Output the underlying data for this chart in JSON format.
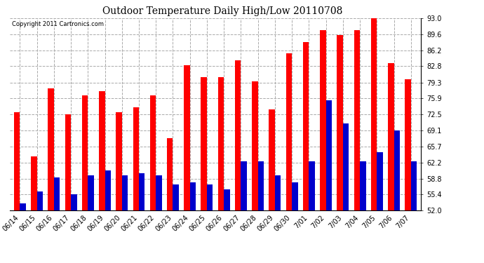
{
  "title": "Outdoor Temperature Daily High/Low 20110708",
  "copyright": "Copyright 2011 Cartronics.com",
  "dates": [
    "06/14",
    "06/15",
    "06/16",
    "06/17",
    "06/18",
    "06/19",
    "06/20",
    "06/21",
    "06/22",
    "06/23",
    "06/24",
    "06/25",
    "06/26",
    "06/27",
    "06/28",
    "06/29",
    "06/30",
    "7/01",
    "7/02",
    "7/03",
    "7/04",
    "7/05",
    "7/06",
    "7/07"
  ],
  "highs": [
    73.0,
    63.5,
    78.0,
    72.5,
    76.5,
    77.5,
    73.0,
    74.0,
    76.5,
    67.5,
    83.0,
    80.5,
    80.5,
    84.0,
    79.5,
    73.5,
    85.5,
    88.0,
    90.5,
    89.5,
    90.5,
    93.0,
    83.5,
    80.0
  ],
  "lows": [
    53.5,
    56.0,
    59.0,
    55.5,
    59.5,
    60.5,
    59.5,
    60.0,
    59.5,
    57.5,
    58.0,
    57.5,
    56.5,
    62.5,
    62.5,
    59.5,
    58.0,
    62.5,
    75.5,
    70.5,
    62.5,
    64.5,
    69.0,
    62.5
  ],
  "high_color": "#ff0000",
  "low_color": "#0000cc",
  "bg_color": "#ffffff",
  "grid_color": "#aaaaaa",
  "ymin": 52.0,
  "ymax": 93.0,
  "ytick_labels": [
    "52.0",
    "55.4",
    "58.8",
    "62.2",
    "65.7",
    "69.1",
    "72.5",
    "75.9",
    "79.3",
    "82.8",
    "86.2",
    "89.6",
    "93.0"
  ],
  "ytick_values": [
    52.0,
    55.4,
    58.8,
    62.2,
    65.7,
    69.1,
    72.5,
    75.9,
    79.3,
    82.8,
    86.2,
    89.6,
    93.0
  ],
  "bar_width": 0.35,
  "title_fontsize": 10,
  "tick_fontsize": 7,
  "copyright_fontsize": 6
}
